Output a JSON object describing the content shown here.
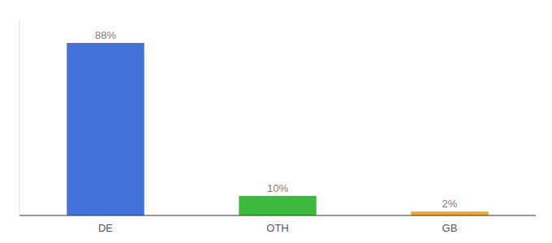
{
  "chart_data": {
    "type": "bar",
    "categories": [
      "DE",
      "OTH",
      "GB"
    ],
    "values": [
      88,
      10,
      2
    ],
    "value_labels": [
      "88%",
      "10%",
      "2%"
    ],
    "colors": [
      "#4472db",
      "#3dba3d",
      "#f5a623"
    ],
    "ylim": [
      0,
      100
    ],
    "data_labels": true,
    "tick_labels": "x"
  }
}
